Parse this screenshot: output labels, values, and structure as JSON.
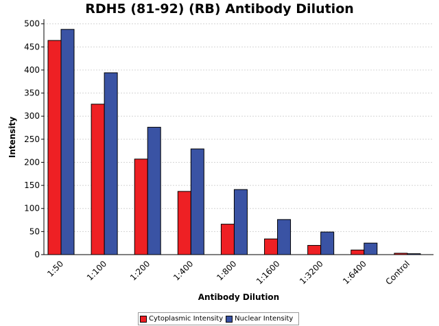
{
  "chart_data": {
    "type": "bar",
    "title": "RDH5 (81-92) (RB) Antibody Dilution",
    "xlabel": "Antibody Dilution",
    "ylabel": "Intensity",
    "ylim": [
      0,
      510
    ],
    "yticks": [
      0,
      50,
      100,
      150,
      200,
      250,
      300,
      350,
      400,
      450,
      500
    ],
    "grid": true,
    "legend_position": "bottom",
    "categories": [
      "1:50",
      "1:100",
      "1:200",
      "1:400",
      "1:800",
      "1:1600",
      "1:3200",
      "1:6400",
      "Control"
    ],
    "series": [
      {
        "name": "Cytoplasmic Intensity",
        "color": "#ee2024",
        "values": [
          464,
          326,
          207,
          137,
          66,
          34,
          20,
          10,
          3
        ]
      },
      {
        "name": "Nuclear Intensity",
        "color": "#3a53a4",
        "values": [
          488,
          394,
          276,
          229,
          141,
          76,
          49,
          25,
          2
        ]
      }
    ]
  }
}
